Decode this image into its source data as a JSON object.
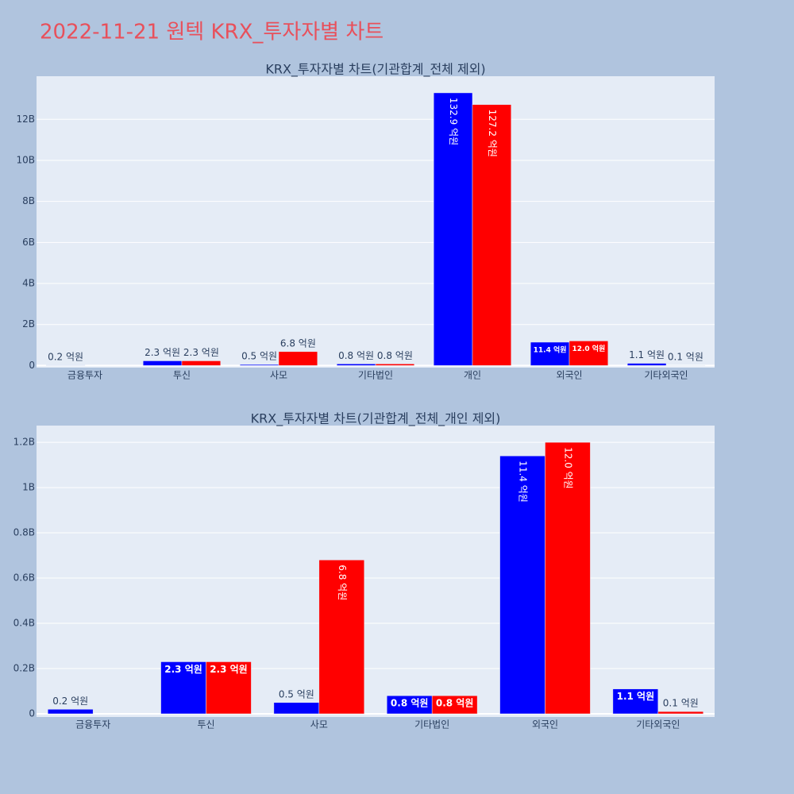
{
  "title": "2022-11-21 원텍 KRX_투자자별 차트",
  "chart_data": [
    {
      "type": "bar",
      "title": "KRX_투자자별 차트(기관합계_전체 제외)",
      "categories": [
        "금융투자",
        "투신",
        "사모",
        "기타법인",
        "개인",
        "외국인",
        "기타외국인"
      ],
      "series": [
        {
          "color": "#0000ff",
          "values": [
            20000000,
            230000000,
            50000000,
            80000000,
            13290000000,
            1140000000,
            110000000
          ],
          "value_labels": [
            "0.2 억원",
            "2.3 억원",
            "0.5 억원",
            "0.8 억원",
            "132.9 억원",
            "11.4 억원",
            "1.1 억원"
          ]
        },
        {
          "color": "#ff0000",
          "values": [
            null,
            230000000,
            680000000,
            80000000,
            12720000000,
            1200000000,
            10000000
          ],
          "value_labels": [
            null,
            "2.3 억원",
            "6.8 억원",
            "0.8 억원",
            "127.2 억원",
            "12.0 억원",
            "0.1 억원"
          ]
        }
      ],
      "ylim": [
        -100000000,
        14100000000
      ],
      "yticks": [
        0,
        {
          "value": 2000000000,
          "label": "2B"
        },
        {
          "value": 4000000000,
          "label": "4B"
        },
        {
          "value": 6000000000,
          "label": "6B"
        },
        {
          "value": 8000000000,
          "label": "8B"
        },
        {
          "value": 10000000000,
          "label": "10B"
        },
        {
          "value": 12000000000,
          "label": "12B"
        }
      ],
      "grid": true
    },
    {
      "type": "bar",
      "title": "KRX_투자자별 차트(기관합계_전체_개인 제외)",
      "categories": [
        "금융투자",
        "투신",
        "사모",
        "기타법인",
        "외국인",
        "기타외국인"
      ],
      "series": [
        {
          "color": "#0000ff",
          "values": [
            20000000,
            230000000,
            50000000,
            80000000,
            1140000000,
            110000000
          ],
          "value_labels": [
            "0.2 억원",
            "2.3 억원",
            "0.5 억원",
            "0.8 억원",
            "11.4 억원",
            "1.1 억원"
          ]
        },
        {
          "color": "#ff0000",
          "values": [
            null,
            230000000,
            680000000,
            80000000,
            1200000000,
            10000000
          ],
          "value_labels": [
            null,
            "2.3 억원",
            "6.8 억원",
            "0.8 억원",
            "12.0 억원",
            "0.1 억원"
          ]
        }
      ],
      "ylim": [
        -14000000,
        1274000000
      ],
      "yticks": [
        0,
        {
          "value": 200000000,
          "label": "0.2B"
        },
        {
          "value": 400000000,
          "label": "0.4B"
        },
        {
          "value": 600000000,
          "label": "0.6B"
        },
        {
          "value": 800000000,
          "label": "0.8B"
        },
        {
          "value": 1000000000,
          "label": "1B"
        },
        {
          "value": 1200000000,
          "label": "1.2B"
        }
      ],
      "grid": true
    }
  ]
}
